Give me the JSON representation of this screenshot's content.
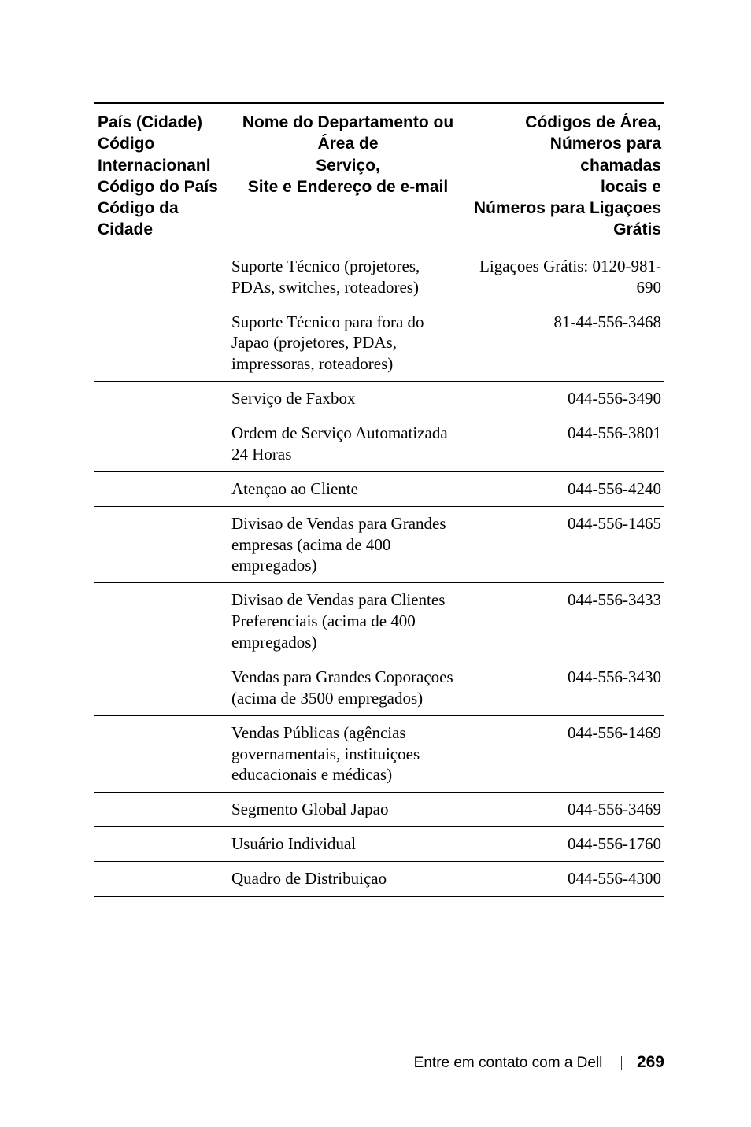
{
  "table": {
    "headers": {
      "col1": "País (Cidade)\nCódigo Internacionanl\nCódigo do País\nCódigo da Cidade",
      "col2_line1": "Nome do Departamento ou Área de",
      "col2_line2": "Serviço,",
      "col2_line3": "Site e Endereço de e-mail",
      "col3_line1": "Códigos de Área,",
      "col3_line2": "Números para chamadas",
      "col3_line3": "locais e",
      "col3_line4": "Números para Ligaçoes",
      "col3_line5": "Grátis"
    },
    "rows": [
      {
        "c2": "Suporte Técnico (projetores, PDAs, switches, roteadores)",
        "c3": "Ligaçoes Grátis: 0120-981-690"
      },
      {
        "c2": "Suporte Técnico para fora do Japao (projetores, PDAs, impressoras, roteadores)",
        "c3": "81-44-556-3468"
      },
      {
        "c2": "Serviço de Faxbox",
        "c3": "044-556-3490"
      },
      {
        "c2": "Ordem de Serviço Automatizada 24 Horas",
        "c3": "044-556-3801"
      },
      {
        "c2": "Atençao ao Cliente",
        "c3": "044-556-4240"
      },
      {
        "c2": "Divisao de Vendas para Grandes empresas (acima de 400 empregados)",
        "c3": "044-556-1465"
      },
      {
        "c2": "Divisao de Vendas para Clientes Preferenciais (acima de 400 empregados)",
        "c3": "044-556-3433"
      },
      {
        "c2": "Vendas para Grandes Coporaçoes (acima de 3500 empregados)",
        "c3": "044-556-3430"
      },
      {
        "c2": "Vendas Públicas (agências governamentais, instituiçoes educacionais e médicas)",
        "c3": "044-556-1469"
      },
      {
        "c2": "Segmento Global Japao",
        "c3": "044-556-3469"
      },
      {
        "c2": "Usuário Individual",
        "c3": "044-556-1760"
      },
      {
        "c2": "Quadro de Distribuiçao",
        "c3": "044-556-4300"
      }
    ]
  },
  "footer": {
    "title": "Entre em contato com a Dell",
    "page": "269"
  }
}
